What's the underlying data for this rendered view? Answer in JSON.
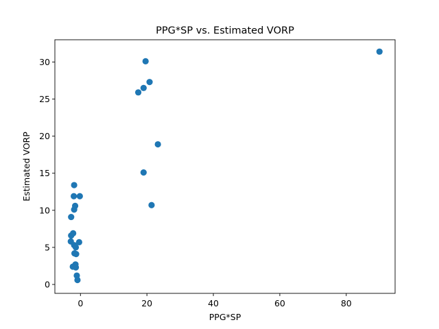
{
  "chart_data": {
    "type": "scatter",
    "title": "PPG*SP vs. Estimated VORP",
    "xlabel": "PPG*SP",
    "ylabel": "Estimated VORP",
    "xlim": [
      -7.7,
      94.7
    ],
    "ylim": [
      -1.2,
      33.0
    ],
    "xticks": [
      0,
      20,
      40,
      60,
      80
    ],
    "yticks": [
      0,
      5,
      10,
      15,
      20,
      25,
      30
    ],
    "grid": false,
    "marker_color": "#1f77b4",
    "points": [
      {
        "x": 90.0,
        "y": 31.4
      },
      {
        "x": 19.6,
        "y": 30.1
      },
      {
        "x": 20.8,
        "y": 27.3
      },
      {
        "x": 19.0,
        "y": 26.5
      },
      {
        "x": 17.4,
        "y": 25.9
      },
      {
        "x": 23.3,
        "y": 18.9
      },
      {
        "x": 19.0,
        "y": 15.1
      },
      {
        "x": 21.4,
        "y": 10.7
      },
      {
        "x": -1.9,
        "y": 13.4
      },
      {
        "x": -2.0,
        "y": 11.9
      },
      {
        "x": -0.2,
        "y": 11.9
      },
      {
        "x": -1.6,
        "y": 10.6
      },
      {
        "x": -1.9,
        "y": 10.1
      },
      {
        "x": -2.8,
        "y": 9.1
      },
      {
        "x": -2.2,
        "y": 6.9
      },
      {
        "x": -2.8,
        "y": 6.6
      },
      {
        "x": -2.9,
        "y": 5.8
      },
      {
        "x": -0.4,
        "y": 5.7
      },
      {
        "x": -1.9,
        "y": 5.3
      },
      {
        "x": -1.4,
        "y": 5.0
      },
      {
        "x": -1.8,
        "y": 4.2
      },
      {
        "x": -1.3,
        "y": 4.1
      },
      {
        "x": -1.5,
        "y": 2.7
      },
      {
        "x": -2.3,
        "y": 2.4
      },
      {
        "x": -1.4,
        "y": 2.3
      },
      {
        "x": -1.1,
        "y": 1.2
      },
      {
        "x": -0.9,
        "y": 0.6
      }
    ]
  }
}
